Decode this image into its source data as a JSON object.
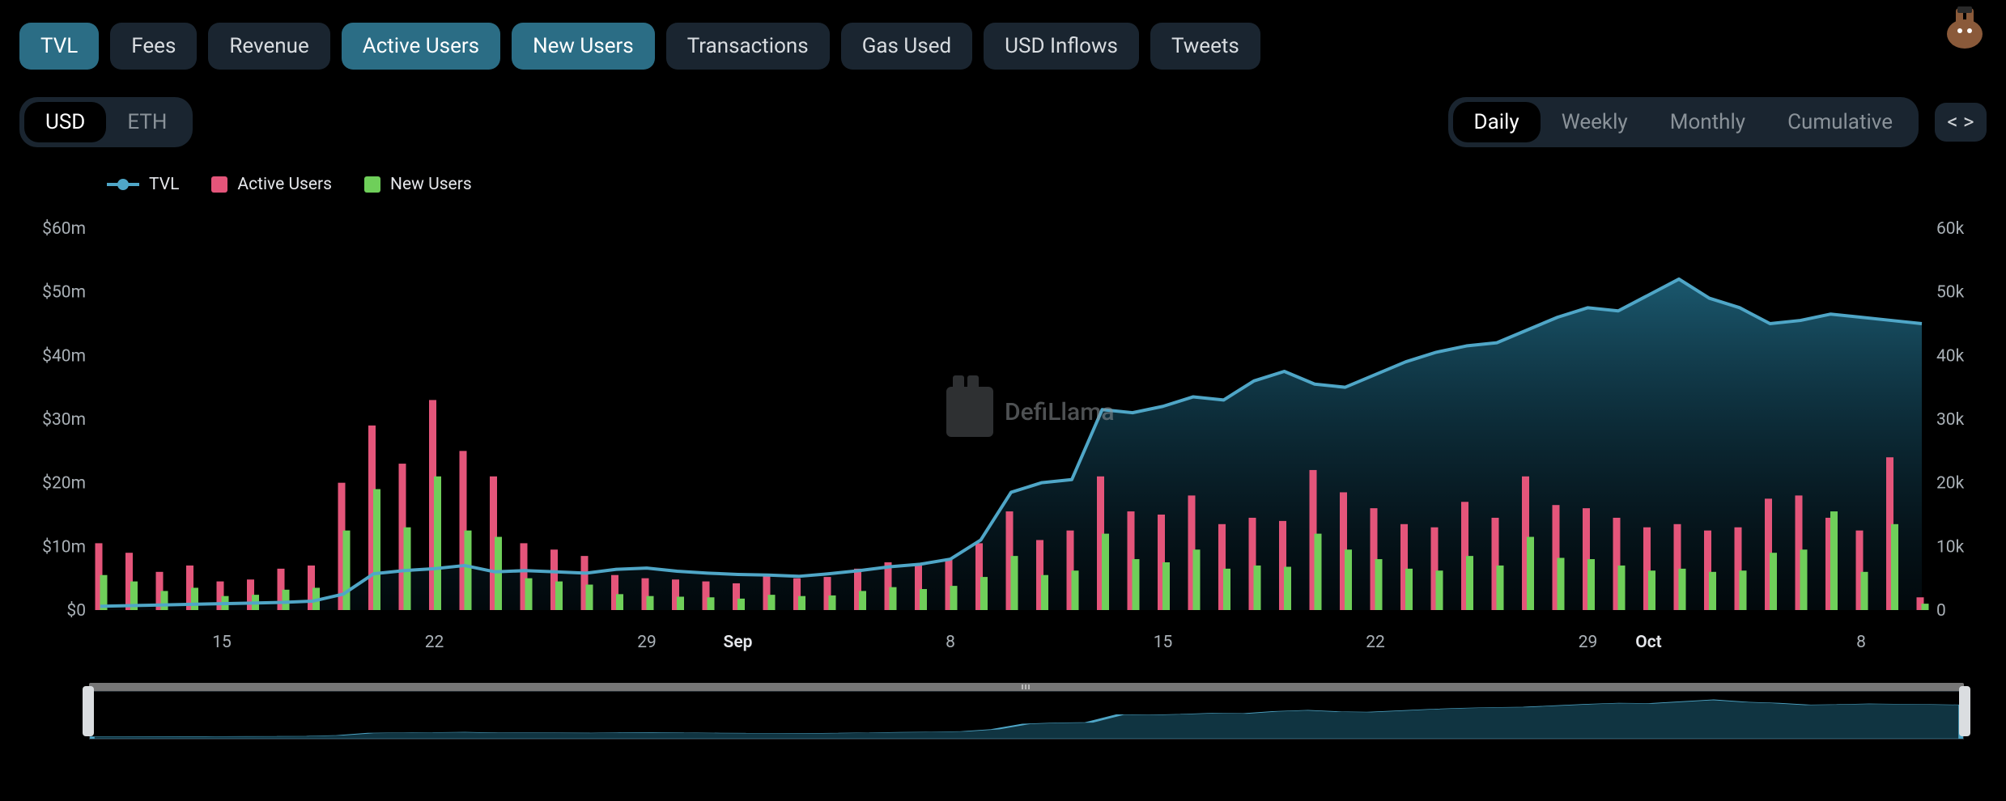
{
  "colors": {
    "bg": "#000000",
    "tab_bg": "#1a2530",
    "tab_active_bg": "#2b6d85",
    "pill_inactive_text": "#8a9299",
    "axis_text": "#a9b0b6",
    "tvl_line": "#4fa6c7",
    "tvl_fill_top": "#1f6781",
    "tvl_fill_bottom": "#082331",
    "active_users_bar": "#e4557a",
    "new_users_bar": "#6fcf5a",
    "brush_bar": "#777777",
    "handle": "#dadde0"
  },
  "metric_tabs": [
    {
      "label": "TVL",
      "active": true
    },
    {
      "label": "Fees",
      "active": false
    },
    {
      "label": "Revenue",
      "active": false
    },
    {
      "label": "Active Users",
      "active": true
    },
    {
      "label": "New Users",
      "active": true
    },
    {
      "label": "Transactions",
      "active": false
    },
    {
      "label": "Gas Used",
      "active": false
    },
    {
      "label": "USD Inflows",
      "active": false
    },
    {
      "label": "Tweets",
      "active": false
    }
  ],
  "currency_toggle": {
    "options": [
      "USD",
      "ETH"
    ],
    "active": "USD"
  },
  "interval_toggle": {
    "options": [
      "Daily",
      "Weekly",
      "Monthly",
      "Cumulative"
    ],
    "active": "Daily"
  },
  "embed_label": "< >",
  "legend": [
    {
      "label": "TVL",
      "type": "line",
      "color": "#4fa6c7"
    },
    {
      "label": "Active Users",
      "type": "bar",
      "color": "#e4557a"
    },
    {
      "label": "New Users",
      "type": "bar",
      "color": "#6fcf5a"
    }
  ],
  "watermark_text": "DefiLlama",
  "chart": {
    "left_axis": {
      "label": "USD",
      "ticks": [
        {
          "v": 0,
          "label": "$0"
        },
        {
          "v": 10000000,
          "label": "$10m"
        },
        {
          "v": 20000000,
          "label": "$20m"
        },
        {
          "v": 30000000,
          "label": "$30m"
        },
        {
          "v": 40000000,
          "label": "$40m"
        },
        {
          "v": 50000000,
          "label": "$50m"
        },
        {
          "v": 60000000,
          "label": "$60m"
        }
      ],
      "min": 0,
      "max": 60000000
    },
    "right_axis": {
      "label": "Users",
      "ticks": [
        {
          "v": 0,
          "label": "0"
        },
        {
          "v": 10000,
          "label": "10k"
        },
        {
          "v": 20000,
          "label": "20k"
        },
        {
          "v": 30000,
          "label": "30k"
        },
        {
          "v": 40000,
          "label": "40k"
        },
        {
          "v": 50000,
          "label": "50k"
        },
        {
          "v": 60000,
          "label": "60k"
        }
      ],
      "min": 0,
      "max": 60000
    },
    "x_axis": {
      "ticks": [
        {
          "i": 4,
          "label": "15",
          "bold": false
        },
        {
          "i": 11,
          "label": "22",
          "bold": false
        },
        {
          "i": 18,
          "label": "29",
          "bold": false
        },
        {
          "i": 21,
          "label": "Sep",
          "bold": true
        },
        {
          "i": 28,
          "label": "8",
          "bold": false
        },
        {
          "i": 35,
          "label": "15",
          "bold": false
        },
        {
          "i": 42,
          "label": "22",
          "bold": false
        },
        {
          "i": 49,
          "label": "29",
          "bold": false
        },
        {
          "i": 51,
          "label": "Oct",
          "bold": true
        },
        {
          "i": 58,
          "label": "8",
          "bold": false
        }
      ]
    },
    "data": [
      {
        "d": "Aug 11",
        "tvl": 600000,
        "active": 10500,
        "new": 5500
      },
      {
        "d": "Aug 12",
        "tvl": 700000,
        "active": 9000,
        "new": 4500
      },
      {
        "d": "Aug 13",
        "tvl": 800000,
        "active": 6000,
        "new": 3000
      },
      {
        "d": "Aug 14",
        "tvl": 900000,
        "active": 7000,
        "new": 3500
      },
      {
        "d": "Aug 15",
        "tvl": 1000000,
        "active": 4500,
        "new": 2200
      },
      {
        "d": "Aug 16",
        "tvl": 1100000,
        "active": 4800,
        "new": 2400
      },
      {
        "d": "Aug 17",
        "tvl": 1200000,
        "active": 6500,
        "new": 3200
      },
      {
        "d": "Aug 18",
        "tvl": 1400000,
        "active": 7000,
        "new": 3500
      },
      {
        "d": "Aug 19",
        "tvl": 2500000,
        "active": 20000,
        "new": 12500
      },
      {
        "d": "Aug 20",
        "tvl": 5700000,
        "active": 29000,
        "new": 19000
      },
      {
        "d": "Aug 21",
        "tvl": 6200000,
        "active": 23000,
        "new": 13000
      },
      {
        "d": "Aug 22",
        "tvl": 6500000,
        "active": 33000,
        "new": 21000
      },
      {
        "d": "Aug 23",
        "tvl": 7000000,
        "active": 25000,
        "new": 12500
      },
      {
        "d": "Aug 24",
        "tvl": 6000000,
        "active": 21000,
        "new": 11500
      },
      {
        "d": "Aug 25",
        "tvl": 6200000,
        "active": 10500,
        "new": 5000
      },
      {
        "d": "Aug 26",
        "tvl": 6000000,
        "active": 9500,
        "new": 4500
      },
      {
        "d": "Aug 27",
        "tvl": 5800000,
        "active": 8500,
        "new": 4000
      },
      {
        "d": "Aug 28",
        "tvl": 6400000,
        "active": 5500,
        "new": 2500
      },
      {
        "d": "Aug 29",
        "tvl": 6600000,
        "active": 5000,
        "new": 2200
      },
      {
        "d": "Aug 30",
        "tvl": 6100000,
        "active": 4800,
        "new": 2100
      },
      {
        "d": "Aug 31",
        "tvl": 5800000,
        "active": 4500,
        "new": 2000
      },
      {
        "d": "Sep 1",
        "tvl": 5600000,
        "active": 4200,
        "new": 1800
      },
      {
        "d": "Sep 2",
        "tvl": 5500000,
        "active": 5500,
        "new": 2400
      },
      {
        "d": "Sep 3",
        "tvl": 5300000,
        "active": 5000,
        "new": 2200
      },
      {
        "d": "Sep 4",
        "tvl": 5700000,
        "active": 5200,
        "new": 2300
      },
      {
        "d": "Sep 5",
        "tvl": 6200000,
        "active": 6500,
        "new": 3000
      },
      {
        "d": "Sep 6",
        "tvl": 6800000,
        "active": 7500,
        "new": 3600
      },
      {
        "d": "Sep 7",
        "tvl": 7200000,
        "active": 7000,
        "new": 3300
      },
      {
        "d": "Sep 8",
        "tvl": 8000000,
        "active": 8000,
        "new": 3800
      },
      {
        "d": "Sep 9",
        "tvl": 11000000,
        "active": 10500,
        "new": 5200
      },
      {
        "d": "Sep 10",
        "tvl": 18500000,
        "active": 15500,
        "new": 8500
      },
      {
        "d": "Sep 11",
        "tvl": 20000000,
        "active": 11000,
        "new": 5500
      },
      {
        "d": "Sep 12",
        "tvl": 20500000,
        "active": 12500,
        "new": 6200
      },
      {
        "d": "Sep 13",
        "tvl": 31500000,
        "active": 21000,
        "new": 12000
      },
      {
        "d": "Sep 14",
        "tvl": 31000000,
        "active": 15500,
        "new": 8000
      },
      {
        "d": "Sep 15",
        "tvl": 32000000,
        "active": 15000,
        "new": 7500
      },
      {
        "d": "Sep 16",
        "tvl": 33500000,
        "active": 18000,
        "new": 9500
      },
      {
        "d": "Sep 17",
        "tvl": 33000000,
        "active": 13500,
        "new": 6500
      },
      {
        "d": "Sep 18",
        "tvl": 36000000,
        "active": 14500,
        "new": 7000
      },
      {
        "d": "Sep 19",
        "tvl": 37500000,
        "active": 14000,
        "new": 6800
      },
      {
        "d": "Sep 20",
        "tvl": 35500000,
        "active": 22000,
        "new": 12000
      },
      {
        "d": "Sep 21",
        "tvl": 35000000,
        "active": 18500,
        "new": 9500
      },
      {
        "d": "Sep 22",
        "tvl": 37000000,
        "active": 16000,
        "new": 8000
      },
      {
        "d": "Sep 23",
        "tvl": 39000000,
        "active": 13500,
        "new": 6500
      },
      {
        "d": "Sep 24",
        "tvl": 40500000,
        "active": 13000,
        "new": 6200
      },
      {
        "d": "Sep 25",
        "tvl": 41500000,
        "active": 17000,
        "new": 8500
      },
      {
        "d": "Sep 26",
        "tvl": 42000000,
        "active": 14500,
        "new": 7000
      },
      {
        "d": "Sep 27",
        "tvl": 44000000,
        "active": 21000,
        "new": 11500
      },
      {
        "d": "Sep 28",
        "tvl": 46000000,
        "active": 16500,
        "new": 8200
      },
      {
        "d": "Sep 29",
        "tvl": 47500000,
        "active": 16000,
        "new": 8000
      },
      {
        "d": "Sep 30",
        "tvl": 47000000,
        "active": 14500,
        "new": 7000
      },
      {
        "d": "Oct 1",
        "tvl": 49500000,
        "active": 13000,
        "new": 6200
      },
      {
        "d": "Oct 2",
        "tvl": 52000000,
        "active": 13500,
        "new": 6500
      },
      {
        "d": "Oct 3",
        "tvl": 49000000,
        "active": 12500,
        "new": 6000
      },
      {
        "d": "Oct 4",
        "tvl": 47500000,
        "active": 13000,
        "new": 6200
      },
      {
        "d": "Oct 5",
        "tvl": 45000000,
        "active": 17500,
        "new": 9000
      },
      {
        "d": "Oct 6",
        "tvl": 45500000,
        "active": 18000,
        "new": 9500
      },
      {
        "d": "Oct 7",
        "tvl": 46500000,
        "active": 14500,
        "new": 15500
      },
      {
        "d": "Oct 8",
        "tvl": 46000000,
        "active": 12500,
        "new": 6000
      },
      {
        "d": "Oct 9",
        "tvl": 45500000,
        "active": 24000,
        "new": 13500
      },
      {
        "d": "Oct 10",
        "tvl": 45000000,
        "active": 2000,
        "new": 1000
      }
    ]
  }
}
